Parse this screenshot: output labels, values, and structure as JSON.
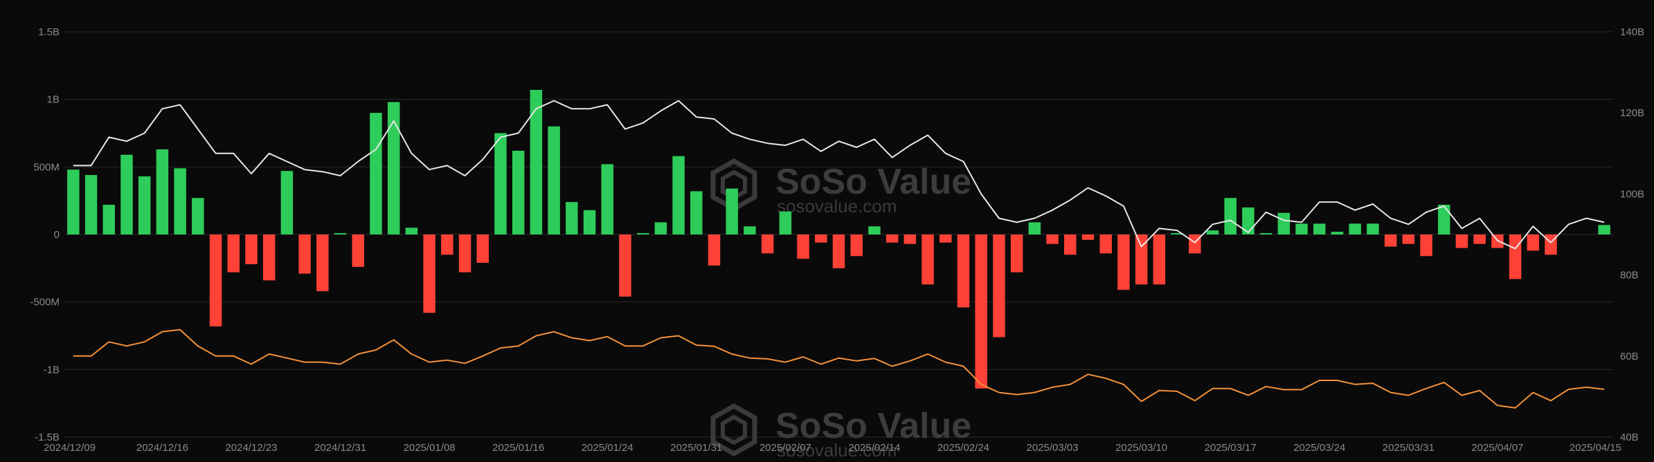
{
  "watermark": {
    "name": "SoSo Value",
    "url": "sosovalue.com"
  },
  "colors": {
    "background": "#0a0a0a",
    "grid": "#2a2a2a",
    "inflow": "#2ecc5a",
    "outflow": "#ff4136",
    "total_line": "#e8e8e8",
    "price_line": "#f5913a",
    "tick_text": "#8a8a8a"
  },
  "chart_data": {
    "type": "bar",
    "title": "",
    "grid": true,
    "legend": "none",
    "x_tick_labels": [
      "2024/12/09",
      "2024/12/16",
      "2024/12/23",
      "2024/12/31",
      "2025/01/08",
      "2025/01/16",
      "2025/01/24",
      "2025/01/31",
      "2025/02/07",
      "2025/02/14",
      "2025/02/24",
      "2025/03/03",
      "2025/03/10",
      "2025/03/17",
      "2025/03/24",
      "2025/03/31",
      "2025/04/07",
      "2025/04/15"
    ],
    "x_tick_indices": [
      0,
      5,
      10,
      15,
      20,
      25,
      30,
      35,
      40,
      45,
      50,
      55,
      60,
      65,
      70,
      75,
      80,
      86
    ],
    "y_left": {
      "ticks": [
        "1.5B",
        "1B",
        "500M",
        "0",
        "-500M",
        "-1B",
        "-1.5B"
      ],
      "ylim": [
        -1.5,
        1.5
      ],
      "unit": "B"
    },
    "y_right": {
      "ticks": [
        "140B",
        "120B",
        "100B",
        "80B",
        "60B",
        "40B"
      ],
      "ylim": [
        40,
        140
      ],
      "unit": "B"
    },
    "series": [
      {
        "axis": "left",
        "kind": "bar",
        "values": [
          0.48,
          0.44,
          0.22,
          0.59,
          0.43,
          0.63,
          0.49,
          0.27,
          -0.68,
          -0.28,
          -0.22,
          -0.34,
          0.47,
          -0.29,
          -0.42,
          0.01,
          -0.24,
          0.9,
          0.98,
          0.05,
          -0.58,
          -0.15,
          -0.28,
          -0.21,
          0.75,
          0.62,
          1.07,
          0.8,
          0.24,
          0.18,
          0.52,
          -0.46,
          0.01,
          0.09,
          0.58,
          0.32,
          -0.23,
          0.34,
          0.06,
          -0.14,
          0.17,
          -0.18,
          -0.06,
          -0.25,
          -0.16,
          0.06,
          -0.06,
          -0.07,
          -0.37,
          -0.06,
          -0.54,
          -1.14,
          -0.76,
          -0.28,
          0.09,
          -0.07,
          -0.15,
          -0.04,
          -0.14,
          -0.41,
          -0.37,
          -0.37,
          0.01,
          -0.14,
          0.03,
          0.27,
          0.2,
          0.01,
          0.16,
          0.08,
          0.08,
          0.02,
          0.08,
          0.08,
          -0.09,
          -0.07,
          -0.16,
          0.22,
          -0.1,
          -0.07,
          -0.1,
          -0.33,
          -0.12,
          -0.15,
          0.0,
          0.0,
          0.07
        ]
      },
      {
        "axis": "right",
        "kind": "line",
        "color_key": "total_line",
        "values": [
          107,
          107,
          114,
          113,
          115,
          121,
          122,
          116,
          110,
          110,
          105,
          110,
          108,
          106,
          105.5,
          104.5,
          108,
          111,
          118,
          110,
          106,
          107,
          104.5,
          108.5,
          114,
          115,
          121,
          123,
          121,
          121,
          122,
          116,
          117.5,
          120.5,
          123,
          119,
          118.5,
          115,
          113.5,
          112.5,
          112,
          113.5,
          110.5,
          113,
          111.5,
          113.5,
          109,
          112,
          114.5,
          110,
          108,
          100,
          94,
          93,
          94,
          96,
          98.5,
          101.5,
          99.5,
          97,
          87,
          91.5,
          91,
          88,
          92.5,
          93.5,
          90.5,
          95.5,
          93.5,
          93,
          98,
          98,
          96,
          97.5,
          94,
          92.5,
          95.5,
          97,
          91.5,
          94,
          88.5,
          86.5,
          92,
          88,
          92.5,
          94,
          93
        ]
      },
      {
        "axis": "right",
        "kind": "line",
        "color_key": "price_line",
        "values": [
          60,
          60,
          63.5,
          62.5,
          63.5,
          66,
          66.5,
          62.5,
          60,
          60,
          58,
          60.5,
          59.5,
          58.5,
          58.5,
          58,
          60.5,
          61.5,
          64,
          60.5,
          58.5,
          59,
          58.2,
          60,
          62,
          62.5,
          65,
          66,
          64.5,
          63.8,
          64.8,
          62.5,
          62.5,
          64.5,
          65,
          62.7,
          62.4,
          60.5,
          59.5,
          59.3,
          58.5,
          59.8,
          58,
          59.5,
          58.8,
          59.4,
          57.5,
          58.8,
          60.5,
          58.5,
          57.5,
          53,
          51,
          50.5,
          51,
          52.3,
          53,
          55.5,
          54.5,
          53,
          48.8,
          51.5,
          51.3,
          49,
          52,
          52,
          50.3,
          52.5,
          51.7,
          51.7,
          54,
          54,
          53,
          53.3,
          51,
          50.3,
          52,
          53.5,
          50.3,
          51.5,
          47.8,
          47.2,
          51,
          49,
          51.8,
          52.3,
          51.8
        ]
      }
    ]
  }
}
